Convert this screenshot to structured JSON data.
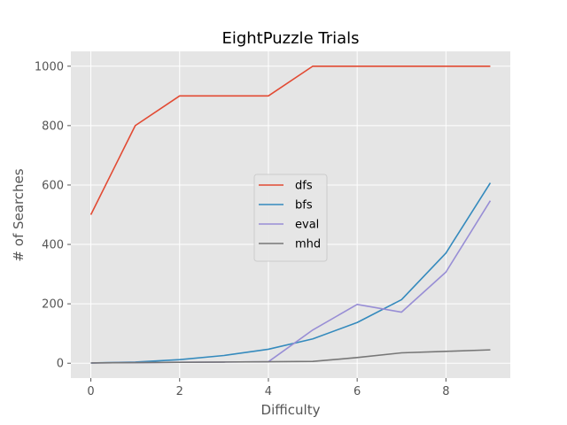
{
  "chart_data": {
    "type": "line",
    "title": "EightPuzzle Trials",
    "xlabel": "Difficulty",
    "ylabel": "# of Searches",
    "xlim": [
      -0.45,
      9.45
    ],
    "ylim": [
      -50,
      1050
    ],
    "xticks": [
      0,
      2,
      4,
      6,
      8
    ],
    "yticks": [
      0,
      200,
      400,
      600,
      800,
      1000
    ],
    "x": [
      0,
      1,
      2,
      3,
      4,
      5,
      6,
      7,
      8,
      9
    ],
    "grid": true,
    "legend_position": "center-right",
    "background": "#e5e5e5",
    "series": [
      {
        "name": "dfs",
        "color": "#e24a33",
        "values": [
          500,
          800,
          900,
          900,
          900,
          1000,
          1000,
          1000,
          1000,
          1000
        ]
      },
      {
        "name": "bfs",
        "color": "#348abd",
        "values": [
          1,
          4,
          12,
          26,
          47,
          82,
          137,
          214,
          371,
          607
        ]
      },
      {
        "name": "eval",
        "color": "#988ed5",
        "values": [
          1,
          2,
          3,
          4,
          5,
          112,
          198,
          172,
          307,
          547
        ]
      },
      {
        "name": "mhd",
        "color": "#777777",
        "values": [
          1,
          2,
          3,
          4,
          5,
          6,
          19,
          35,
          40,
          45
        ]
      }
    ]
  }
}
